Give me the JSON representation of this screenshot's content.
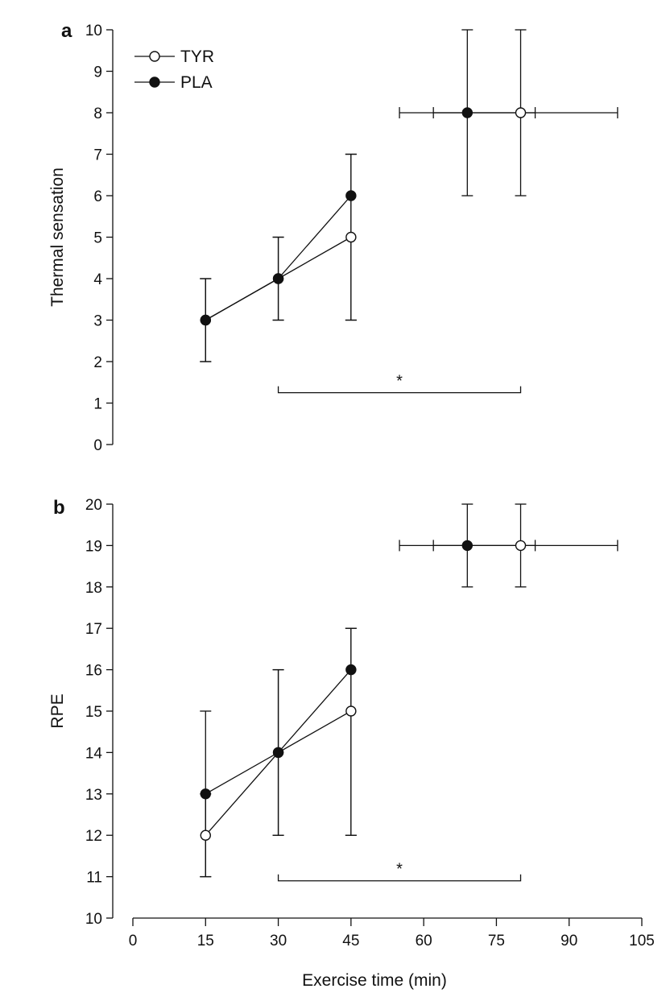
{
  "chart_data": [
    {
      "panel": "a",
      "type": "line",
      "ylabel": "Thermal sensation",
      "xlabel": "",
      "ylim": [
        0,
        10
      ],
      "yticks": [
        0,
        1,
        2,
        3,
        4,
        5,
        6,
        7,
        8,
        9,
        10
      ],
      "legend": {
        "placement": "top-left",
        "entries": [
          "TYR",
          "PLA"
        ]
      },
      "series": [
        {
          "name": "TYR",
          "marker": "open-circle",
          "points": [
            {
              "x": 15,
              "y": 3,
              "yerr": [
                2,
                4
              ]
            },
            {
              "x": 30,
              "y": 4,
              "yerr": [
                3,
                5
              ]
            },
            {
              "x": 45,
              "y": 5,
              "yerr": [
                3,
                7
              ]
            }
          ],
          "end_point": {
            "x": 80,
            "y": 8,
            "xerr": [
              62,
              100
            ],
            "yerr": [
              6,
              10
            ]
          }
        },
        {
          "name": "PLA",
          "marker": "filled-circle",
          "points": [
            {
              "x": 15,
              "y": 3,
              "yerr": [
                2,
                4
              ]
            },
            {
              "x": 30,
              "y": 4,
              "yerr": [
                3,
                5
              ]
            },
            {
              "x": 45,
              "y": 6,
              "yerr": [
                3,
                7
              ]
            }
          ],
          "end_point": {
            "x": 69,
            "y": 8,
            "xerr": [
              55,
              83
            ],
            "yerr": [
              6,
              10
            ]
          }
        }
      ],
      "annotation": {
        "text": "*",
        "x_range": [
          30,
          80
        ],
        "y": 1.25
      }
    },
    {
      "panel": "b",
      "type": "line",
      "ylabel": "RPE",
      "xlabel": "Exercise time (min)",
      "ylim": [
        10,
        20
      ],
      "yticks": [
        10,
        11,
        12,
        13,
        14,
        15,
        16,
        17,
        18,
        19,
        20
      ],
      "xlim": [
        0,
        105
      ],
      "xticks": [
        0,
        15,
        30,
        45,
        60,
        75,
        90,
        105
      ],
      "series": [
        {
          "name": "TYR",
          "marker": "open-circle",
          "points": [
            {
              "x": 15,
              "y": 12,
              "yerr": [
                11,
                13
              ]
            },
            {
              "x": 30,
              "y": 14,
              "yerr": [
                12,
                16
              ]
            },
            {
              "x": 45,
              "y": 15,
              "yerr": [
                12,
                17
              ]
            }
          ],
          "end_point": {
            "x": 80,
            "y": 19,
            "xerr": [
              62,
              100
            ],
            "yerr": [
              18,
              20
            ]
          }
        },
        {
          "name": "PLA",
          "marker": "filled-circle",
          "points": [
            {
              "x": 15,
              "y": 13,
              "yerr": [
                11,
                15
              ]
            },
            {
              "x": 30,
              "y": 14,
              "yerr": [
                12,
                16
              ]
            },
            {
              "x": 45,
              "y": 16,
              "yerr": [
                12,
                17
              ]
            }
          ],
          "end_point": {
            "x": 69,
            "y": 19,
            "xerr": [
              55,
              83
            ],
            "yerr": [
              18,
              20
            ]
          }
        }
      ],
      "annotation": {
        "text": "*",
        "x_range": [
          30,
          80
        ],
        "y": 10.9
      }
    }
  ]
}
